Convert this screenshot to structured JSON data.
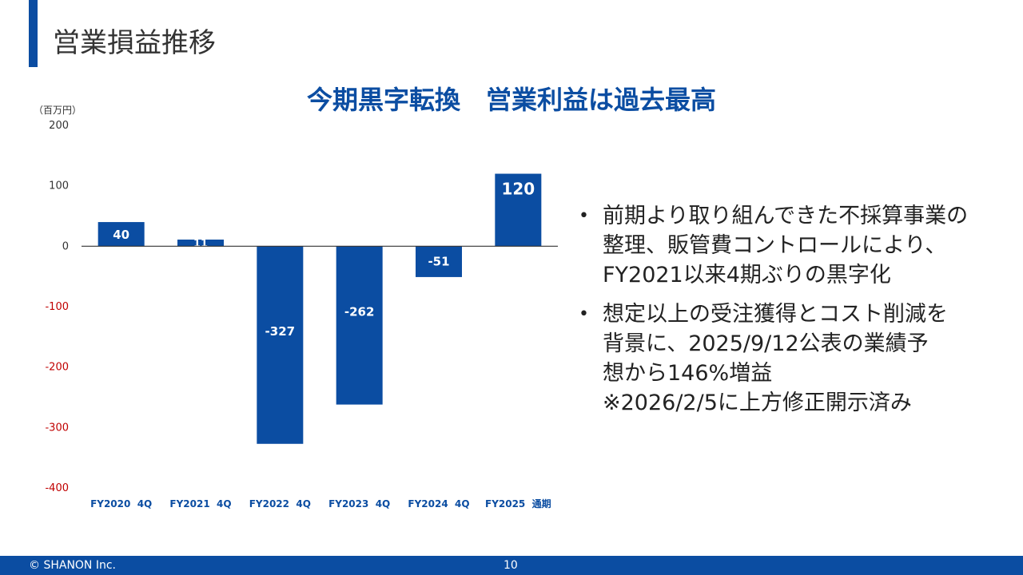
{
  "slide": {
    "title": "営業損益推移",
    "headline": "今期黒字転換　営業利益は過去最高",
    "unit": "（百万円）"
  },
  "colors": {
    "accent": "#0b4da2",
    "bar": "#0b4da2",
    "negative_tick": "#c00000",
    "tick": "#333333"
  },
  "chart_data": {
    "type": "bar",
    "categories": [
      "FY2020  4Q",
      "FY2021  4Q",
      "FY2022  4Q",
      "FY2023  4Q",
      "FY2024  4Q",
      "FY2025  通期"
    ],
    "values": [
      40,
      11,
      -327,
      -262,
      -51,
      120
    ],
    "value_labels": [
      "40",
      "11",
      "-327",
      "-262",
      "-51",
      "120"
    ],
    "ylim": [
      -400,
      200
    ],
    "yticks": [
      200,
      100,
      0,
      -100,
      -200,
      -300,
      -400
    ],
    "ylabel": "（百万円）",
    "title": "今期黒字転換　営業利益は過去最高",
    "grid": false
  },
  "bullets": [
    {
      "lines": [
        "前期より取り組んできた不採算事業の",
        "整理、販管費コントロールにより、",
        "FY2021以来4期ぶりの黒字化"
      ]
    },
    {
      "lines": [
        "想定以上の受注獲得とコスト削減を",
        "背景に、2025/9/12公表の業績予",
        "想から146%増益",
        "※2026/2/5に上方修正開示済み"
      ]
    }
  ],
  "footer": {
    "copyright": "© SHANON Inc.",
    "page_number": "10"
  }
}
